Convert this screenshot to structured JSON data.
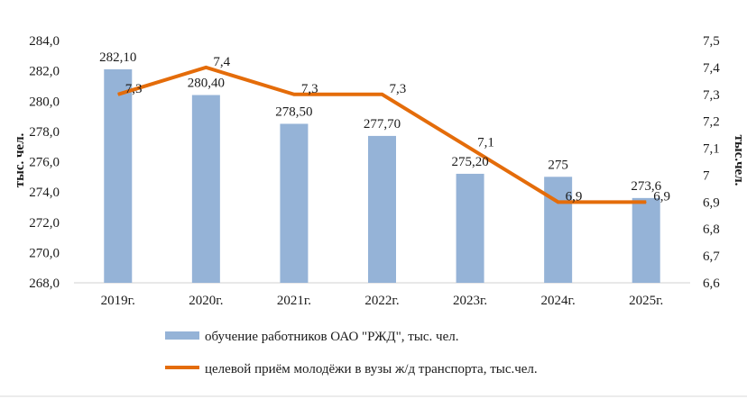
{
  "chart_data": {
    "type": "bar+line",
    "categories": [
      "2019г.",
      "2020г.",
      "2021г.",
      "2022г.",
      "2023г.",
      "2024г.",
      "2025г."
    ],
    "series": [
      {
        "name": "обучение работников ОАО \"РЖД\", тыс. чел.",
        "type": "bar",
        "axis": "left",
        "color": "#95b3d7",
        "values": [
          282.1,
          280.4,
          278.5,
          277.7,
          275.2,
          275.0,
          273.6
        ],
        "labels": [
          "282,10",
          "280,40",
          "278,50",
          "277,70",
          "275,20",
          "275",
          "273,6"
        ]
      },
      {
        "name": "целевой приём молодёжи в вузы ж/д транспорта, тыс.чел.",
        "type": "line",
        "axis": "right",
        "color": "#e46c0a",
        "values": [
          7.3,
          7.4,
          7.3,
          7.3,
          7.1,
          6.9,
          6.9
        ],
        "labels": [
          "7,3",
          "7,4",
          "7,3",
          "7,3",
          "7,1",
          "6,9",
          "6,9"
        ]
      }
    ],
    "y_left": {
      "label": "тыс. чел.",
      "ylim": [
        268,
        284
      ],
      "ticks": [
        "268,0",
        "270,0",
        "272,0",
        "274,0",
        "276,0",
        "278,0",
        "280,0",
        "282,0",
        "284,0"
      ]
    },
    "y_right": {
      "label": "тыс.чел.",
      "ylim": [
        6.6,
        7.5
      ],
      "ticks": [
        "6,6",
        "6,7",
        "6,8",
        "6,9",
        "7",
        "7,1",
        "7,2",
        "7,3",
        "7,4",
        "7,5"
      ]
    },
    "grid": false,
    "legend": "bottom"
  }
}
